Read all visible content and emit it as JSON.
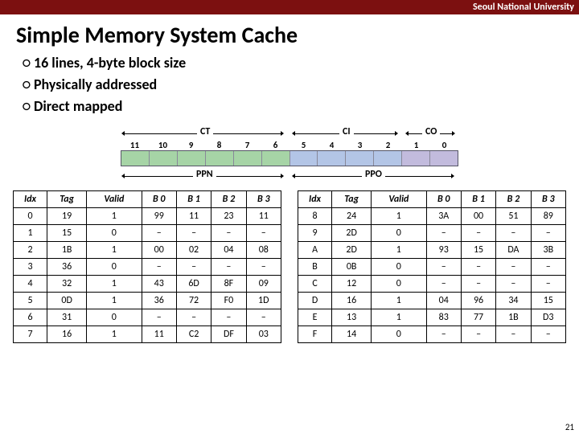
{
  "header": {
    "institution": "Seoul National University"
  },
  "title": "Simple Memory System Cache",
  "bullets": [
    "16 lines, 4-byte block size",
    "Physically addressed",
    "Direct mapped"
  ],
  "diagram": {
    "top_labels": {
      "ct": "CT",
      "ci": "CI",
      "co": "CO"
    },
    "bot_labels": {
      "ppn": "PPN",
      "ppo": "PPO"
    },
    "bits": [
      "11",
      "10",
      "9",
      "8",
      "7",
      "6",
      "5",
      "4",
      "3",
      "2",
      "1",
      "0"
    ],
    "colors": {
      "ct": "#a6d4a6",
      "ci": "#b3c5e6",
      "co": "#c2bbdd"
    },
    "ct_bits": 6,
    "ci_bits": 4,
    "co_bits": 2,
    "ppo_bits": 6
  },
  "table": {
    "headers": [
      "Idx",
      "Tag",
      "Valid",
      "B 0",
      "B 1",
      "B 2",
      "B 3"
    ],
    "left": [
      [
        "0",
        "19",
        "1",
        "99",
        "11",
        "23",
        "11"
      ],
      [
        "1",
        "15",
        "0",
        "–",
        "–",
        "–",
        "–"
      ],
      [
        "2",
        "1B",
        "1",
        "00",
        "02",
        "04",
        "08"
      ],
      [
        "3",
        "36",
        "0",
        "–",
        "–",
        "–",
        "–"
      ],
      [
        "4",
        "32",
        "1",
        "43",
        "6D",
        "8F",
        "09"
      ],
      [
        "5",
        "0D",
        "1",
        "36",
        "72",
        "F0",
        "1D"
      ],
      [
        "6",
        "31",
        "0",
        "–",
        "–",
        "–",
        "–"
      ],
      [
        "7",
        "16",
        "1",
        "11",
        "C2",
        "DF",
        "03"
      ]
    ],
    "right": [
      [
        "8",
        "24",
        "1",
        "3A",
        "00",
        "51",
        "89"
      ],
      [
        "9",
        "2D",
        "0",
        "–",
        "–",
        "–",
        "–"
      ],
      [
        "A",
        "2D",
        "1",
        "93",
        "15",
        "DA",
        "3B"
      ],
      [
        "B",
        "0B",
        "0",
        "–",
        "–",
        "–",
        "–"
      ],
      [
        "C",
        "12",
        "0",
        "–",
        "–",
        "–",
        "–"
      ],
      [
        "D",
        "16",
        "1",
        "04",
        "96",
        "34",
        "15"
      ],
      [
        "E",
        "13",
        "1",
        "83",
        "77",
        "1B",
        "D3"
      ],
      [
        "F",
        "14",
        "0",
        "–",
        "–",
        "–",
        "–"
      ]
    ]
  },
  "pagenum": "21"
}
